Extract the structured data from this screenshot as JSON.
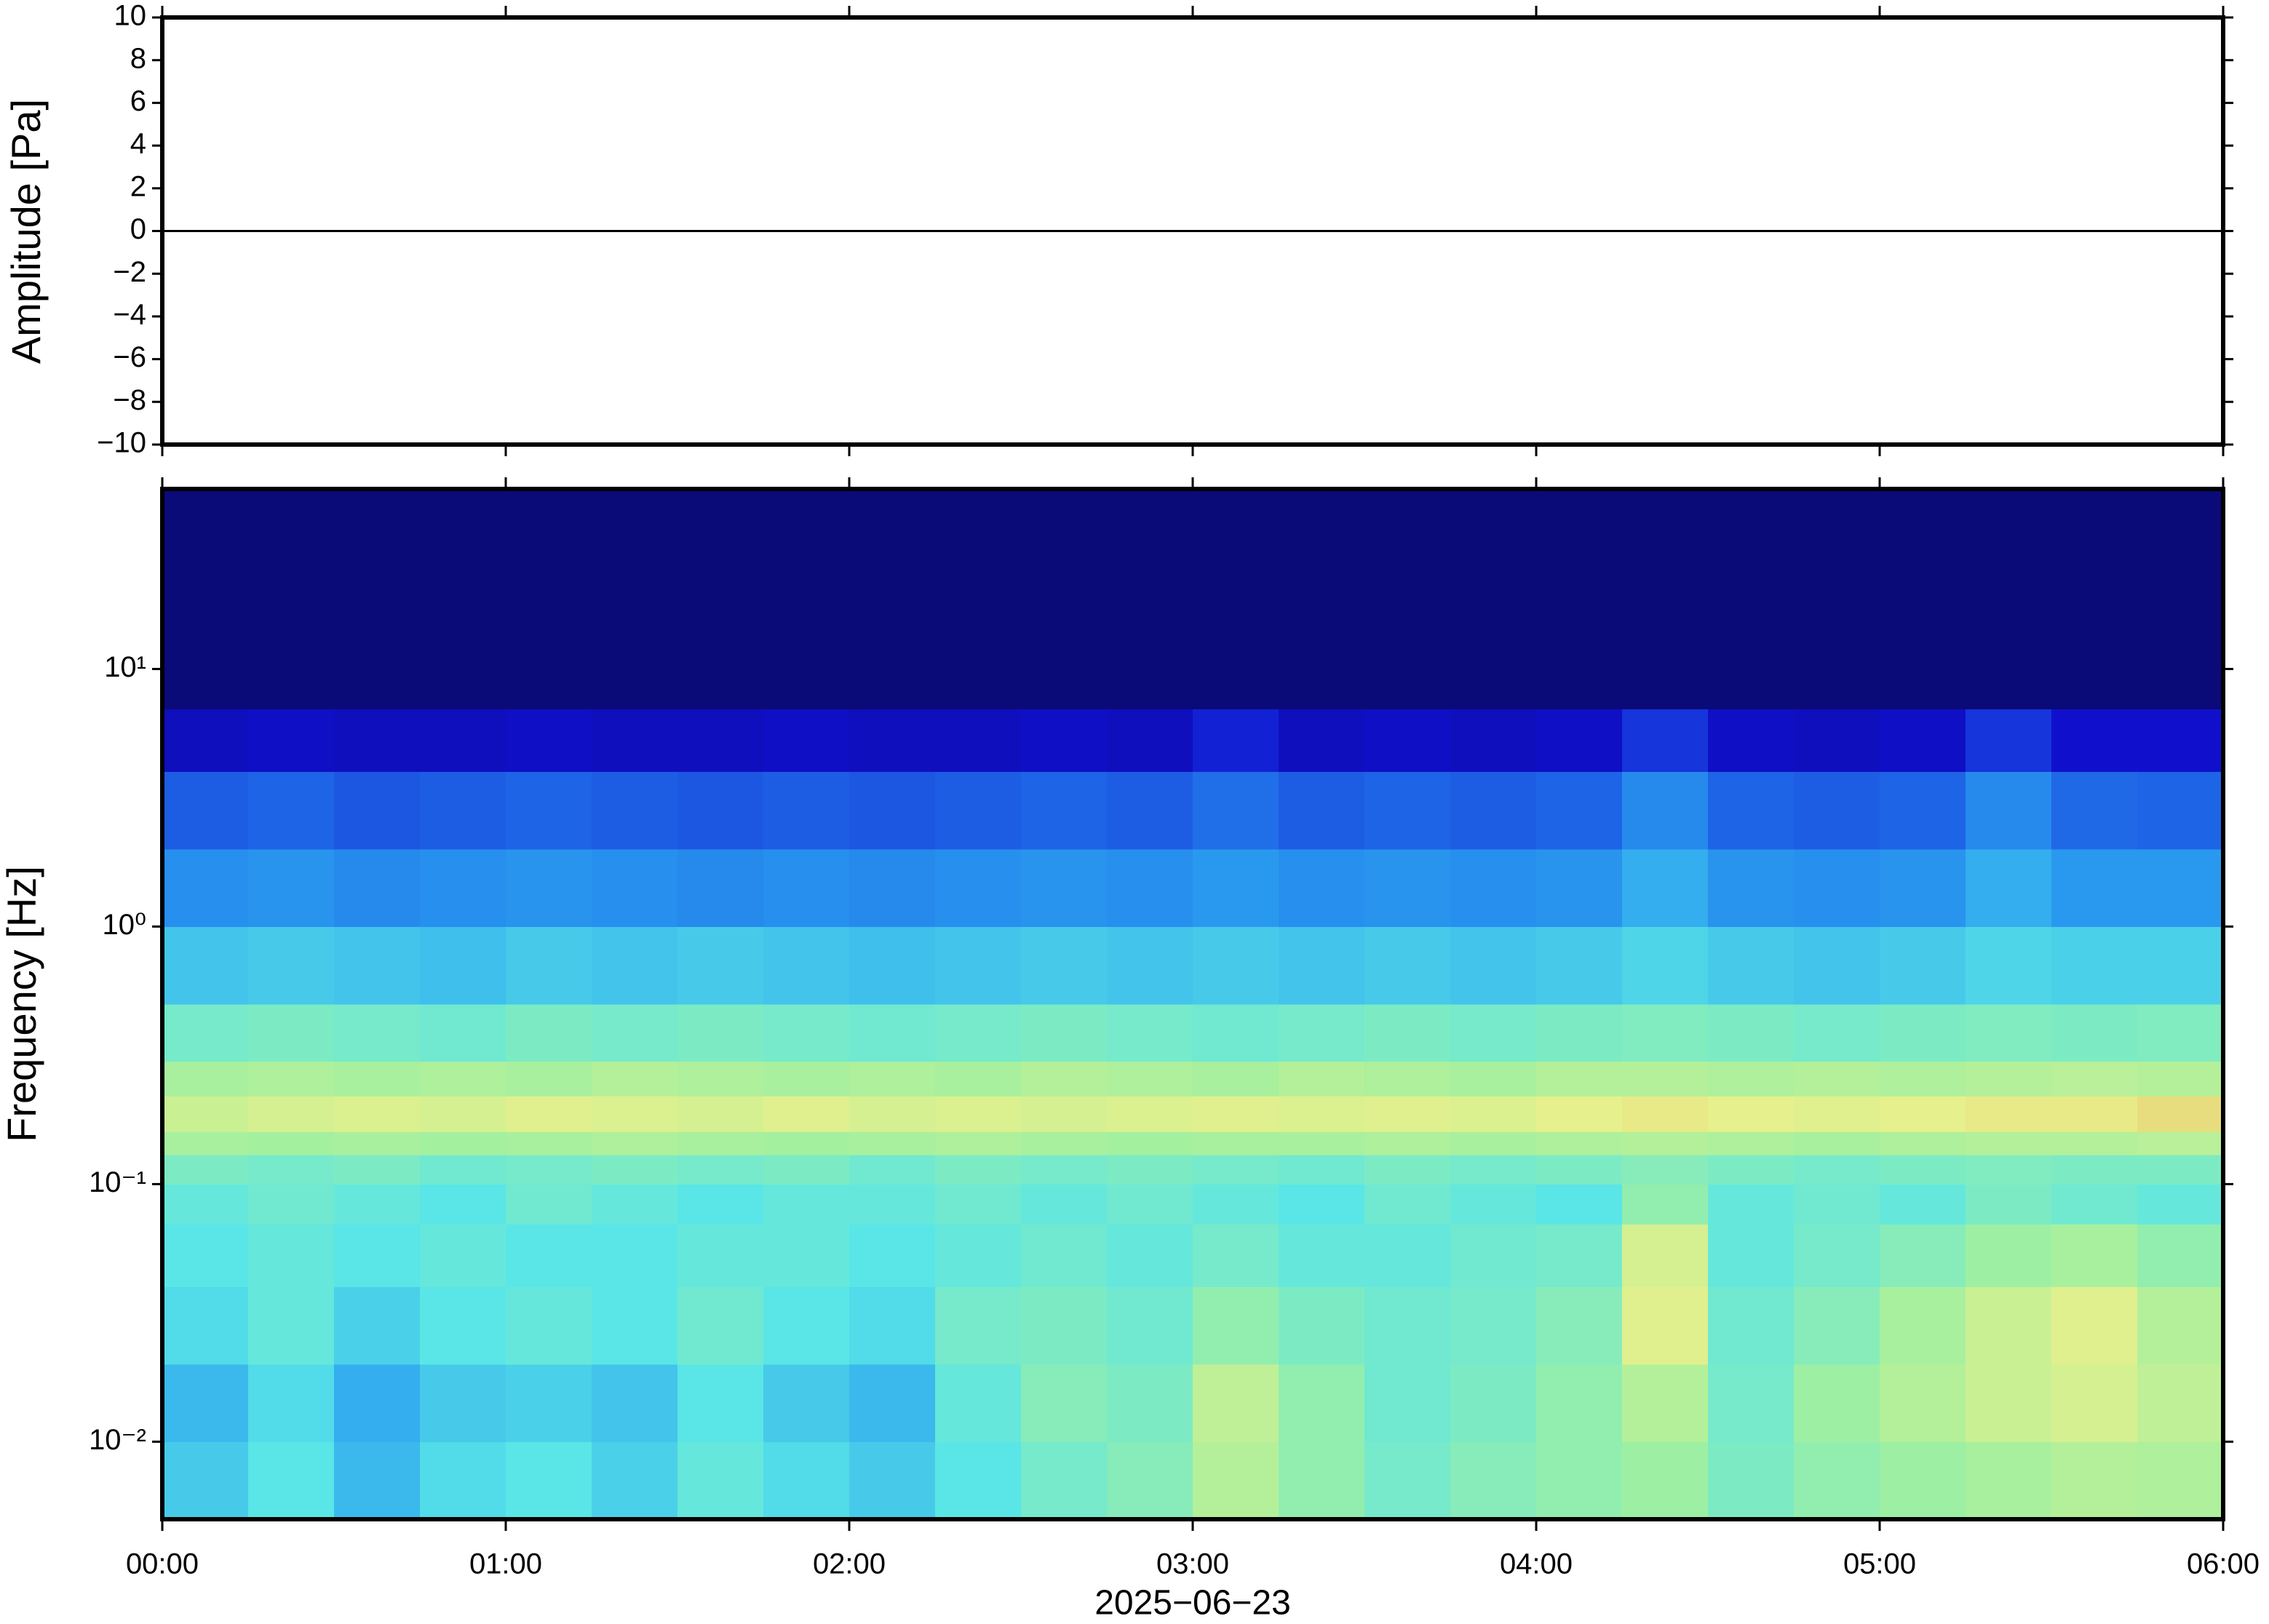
{
  "chart_data": [
    {
      "type": "line",
      "ylabel": "Amplitude [Pa]",
      "xlim": [
        0,
        6
      ],
      "ylim": [
        -10,
        10
      ],
      "yticks": [
        {
          "value": -10,
          "label": "−10"
        },
        {
          "value": -8,
          "label": "−8"
        },
        {
          "value": -6,
          "label": "−6"
        },
        {
          "value": -4,
          "label": "−4"
        },
        {
          "value": -2,
          "label": "−2"
        },
        0,
        2,
        4,
        6,
        8,
        10
      ],
      "x": [
        0,
        0.5,
        1,
        1.5,
        2,
        2.5,
        3,
        3.5,
        4,
        4.5,
        5,
        5.5,
        6
      ],
      "series": [
        {
          "color": "#000000",
          "values": [
            0,
            0,
            0,
            0,
            0,
            0,
            0,
            0,
            0,
            0,
            0,
            0,
            0
          ]
        }
      ]
    },
    {
      "type": "heatmap",
      "ylabel": "Frequency [Hz]",
      "xlabel": "2025−06−23",
      "log_y": true,
      "xlim": [
        0,
        6
      ],
      "ylim": [
        0.005,
        50
      ],
      "xticks": [
        {
          "value": 0,
          "label": "00:00"
        },
        {
          "value": 1,
          "label": "01:00"
        },
        {
          "value": 2,
          "label": "02:00"
        },
        {
          "value": 3,
          "label": "03:00"
        },
        {
          "value": 4,
          "label": "04:00"
        },
        {
          "value": 5,
          "label": "05:00"
        },
        {
          "value": 6,
          "label": "06:00"
        }
      ],
      "yticks": [
        {
          "value": 0.01,
          "label": "10⁻²"
        },
        {
          "value": 0.1,
          "label": "10⁻¹"
        },
        {
          "value": 1,
          "label": "10⁰"
        },
        {
          "value": 10,
          "label": "10¹"
        }
      ],
      "xbins": [
        0,
        0.25,
        0.5,
        0.75,
        1,
        1.25,
        1.5,
        1.75,
        2,
        2.25,
        2.5,
        2.75,
        3,
        3.25,
        3.5,
        3.75,
        4,
        4.25,
        4.5,
        4.75,
        5,
        5.25,
        5.5,
        5.75,
        6
      ],
      "ybins": [
        0.005,
        0.01,
        0.02,
        0.04,
        0.07,
        0.1,
        0.13,
        0.16,
        0.22,
        0.3,
        0.5,
        1,
        2,
        4,
        7,
        50
      ],
      "zlim": [
        0,
        1
      ],
      "colormap": [
        "#0a0a78",
        "#1010d0",
        "#1e64e6",
        "#2aa0f0",
        "#5ae6e6",
        "#a0f0a0",
        "#e6f08c",
        "#f0a050",
        "#c00000"
      ],
      "z": [
        [
          0.45,
          0.5,
          0.42,
          0.48,
          0.5,
          0.46,
          0.52,
          0.48,
          0.45,
          0.5,
          0.55,
          0.58,
          0.66,
          0.6,
          0.55,
          0.58,
          0.6,
          0.62,
          0.56,
          0.6,
          0.62,
          0.64,
          0.66,
          0.65
        ],
        [
          0.42,
          0.48,
          0.4,
          0.45,
          0.46,
          0.44,
          0.5,
          0.45,
          0.42,
          0.52,
          0.58,
          0.56,
          0.68,
          0.6,
          0.54,
          0.56,
          0.6,
          0.66,
          0.55,
          0.62,
          0.66,
          0.7,
          0.72,
          0.68
        ],
        [
          0.48,
          0.52,
          0.46,
          0.5,
          0.52,
          0.5,
          0.54,
          0.5,
          0.48,
          0.55,
          0.56,
          0.54,
          0.6,
          0.56,
          0.54,
          0.55,
          0.58,
          0.74,
          0.54,
          0.58,
          0.64,
          0.7,
          0.74,
          0.66
        ],
        [
          0.5,
          0.52,
          0.5,
          0.52,
          0.5,
          0.5,
          0.52,
          0.52,
          0.5,
          0.52,
          0.54,
          0.52,
          0.55,
          0.52,
          0.52,
          0.54,
          0.55,
          0.72,
          0.52,
          0.55,
          0.58,
          0.62,
          0.64,
          0.6
        ],
        [
          0.52,
          0.54,
          0.52,
          0.5,
          0.54,
          0.52,
          0.5,
          0.52,
          0.52,
          0.54,
          0.52,
          0.54,
          0.52,
          0.5,
          0.54,
          0.52,
          0.5,
          0.6,
          0.52,
          0.54,
          0.52,
          0.56,
          0.54,
          0.52
        ],
        [
          0.56,
          0.55,
          0.56,
          0.54,
          0.55,
          0.56,
          0.55,
          0.56,
          0.54,
          0.56,
          0.55,
          0.56,
          0.55,
          0.54,
          0.56,
          0.55,
          0.56,
          0.58,
          0.56,
          0.55,
          0.56,
          0.57,
          0.56,
          0.56
        ],
        [
          0.64,
          0.63,
          0.64,
          0.63,
          0.64,
          0.65,
          0.64,
          0.63,
          0.64,
          0.65,
          0.64,
          0.63,
          0.64,
          0.64,
          0.65,
          0.64,
          0.65,
          0.66,
          0.65,
          0.64,
          0.65,
          0.66,
          0.66,
          0.67
        ],
        [
          0.7,
          0.72,
          0.73,
          0.72,
          0.74,
          0.73,
          0.72,
          0.74,
          0.72,
          0.73,
          0.72,
          0.73,
          0.74,
          0.73,
          0.74,
          0.73,
          0.75,
          0.76,
          0.75,
          0.74,
          0.75,
          0.76,
          0.76,
          0.78
        ],
        [
          0.64,
          0.65,
          0.64,
          0.65,
          0.64,
          0.66,
          0.65,
          0.64,
          0.65,
          0.64,
          0.66,
          0.65,
          0.64,
          0.66,
          0.65,
          0.64,
          0.66,
          0.66,
          0.65,
          0.66,
          0.65,
          0.66,
          0.67,
          0.66
        ],
        [
          0.55,
          0.56,
          0.55,
          0.54,
          0.56,
          0.55,
          0.56,
          0.55,
          0.54,
          0.55,
          0.56,
          0.55,
          0.54,
          0.55,
          0.56,
          0.55,
          0.56,
          0.57,
          0.56,
          0.55,
          0.56,
          0.57,
          0.56,
          0.57
        ],
        [
          0.44,
          0.45,
          0.44,
          0.43,
          0.45,
          0.44,
          0.45,
          0.44,
          0.43,
          0.44,
          0.45,
          0.44,
          0.45,
          0.44,
          0.45,
          0.44,
          0.45,
          0.47,
          0.45,
          0.44,
          0.45,
          0.47,
          0.46,
          0.46
        ],
        [
          0.34,
          0.35,
          0.33,
          0.34,
          0.35,
          0.34,
          0.33,
          0.34,
          0.33,
          0.34,
          0.35,
          0.34,
          0.36,
          0.34,
          0.35,
          0.34,
          0.35,
          0.4,
          0.35,
          0.34,
          0.35,
          0.4,
          0.36,
          0.36
        ],
        [
          0.24,
          0.25,
          0.23,
          0.24,
          0.25,
          0.24,
          0.23,
          0.24,
          0.23,
          0.24,
          0.25,
          0.24,
          0.27,
          0.24,
          0.25,
          0.24,
          0.25,
          0.33,
          0.25,
          0.24,
          0.25,
          0.33,
          0.26,
          0.25
        ],
        [
          0.1,
          0.11,
          0.1,
          0.1,
          0.11,
          0.1,
          0.1,
          0.11,
          0.1,
          0.1,
          0.11,
          0.1,
          0.15,
          0.1,
          0.11,
          0.1,
          0.11,
          0.18,
          0.11,
          0.1,
          0.11,
          0.18,
          0.12,
          0.12
        ],
        [
          0,
          0,
          0,
          0,
          0,
          0,
          0,
          0,
          0,
          0,
          0,
          0,
          0,
          0,
          0,
          0,
          0,
          0,
          0,
          0,
          0,
          0,
          0,
          0
        ]
      ]
    }
  ]
}
